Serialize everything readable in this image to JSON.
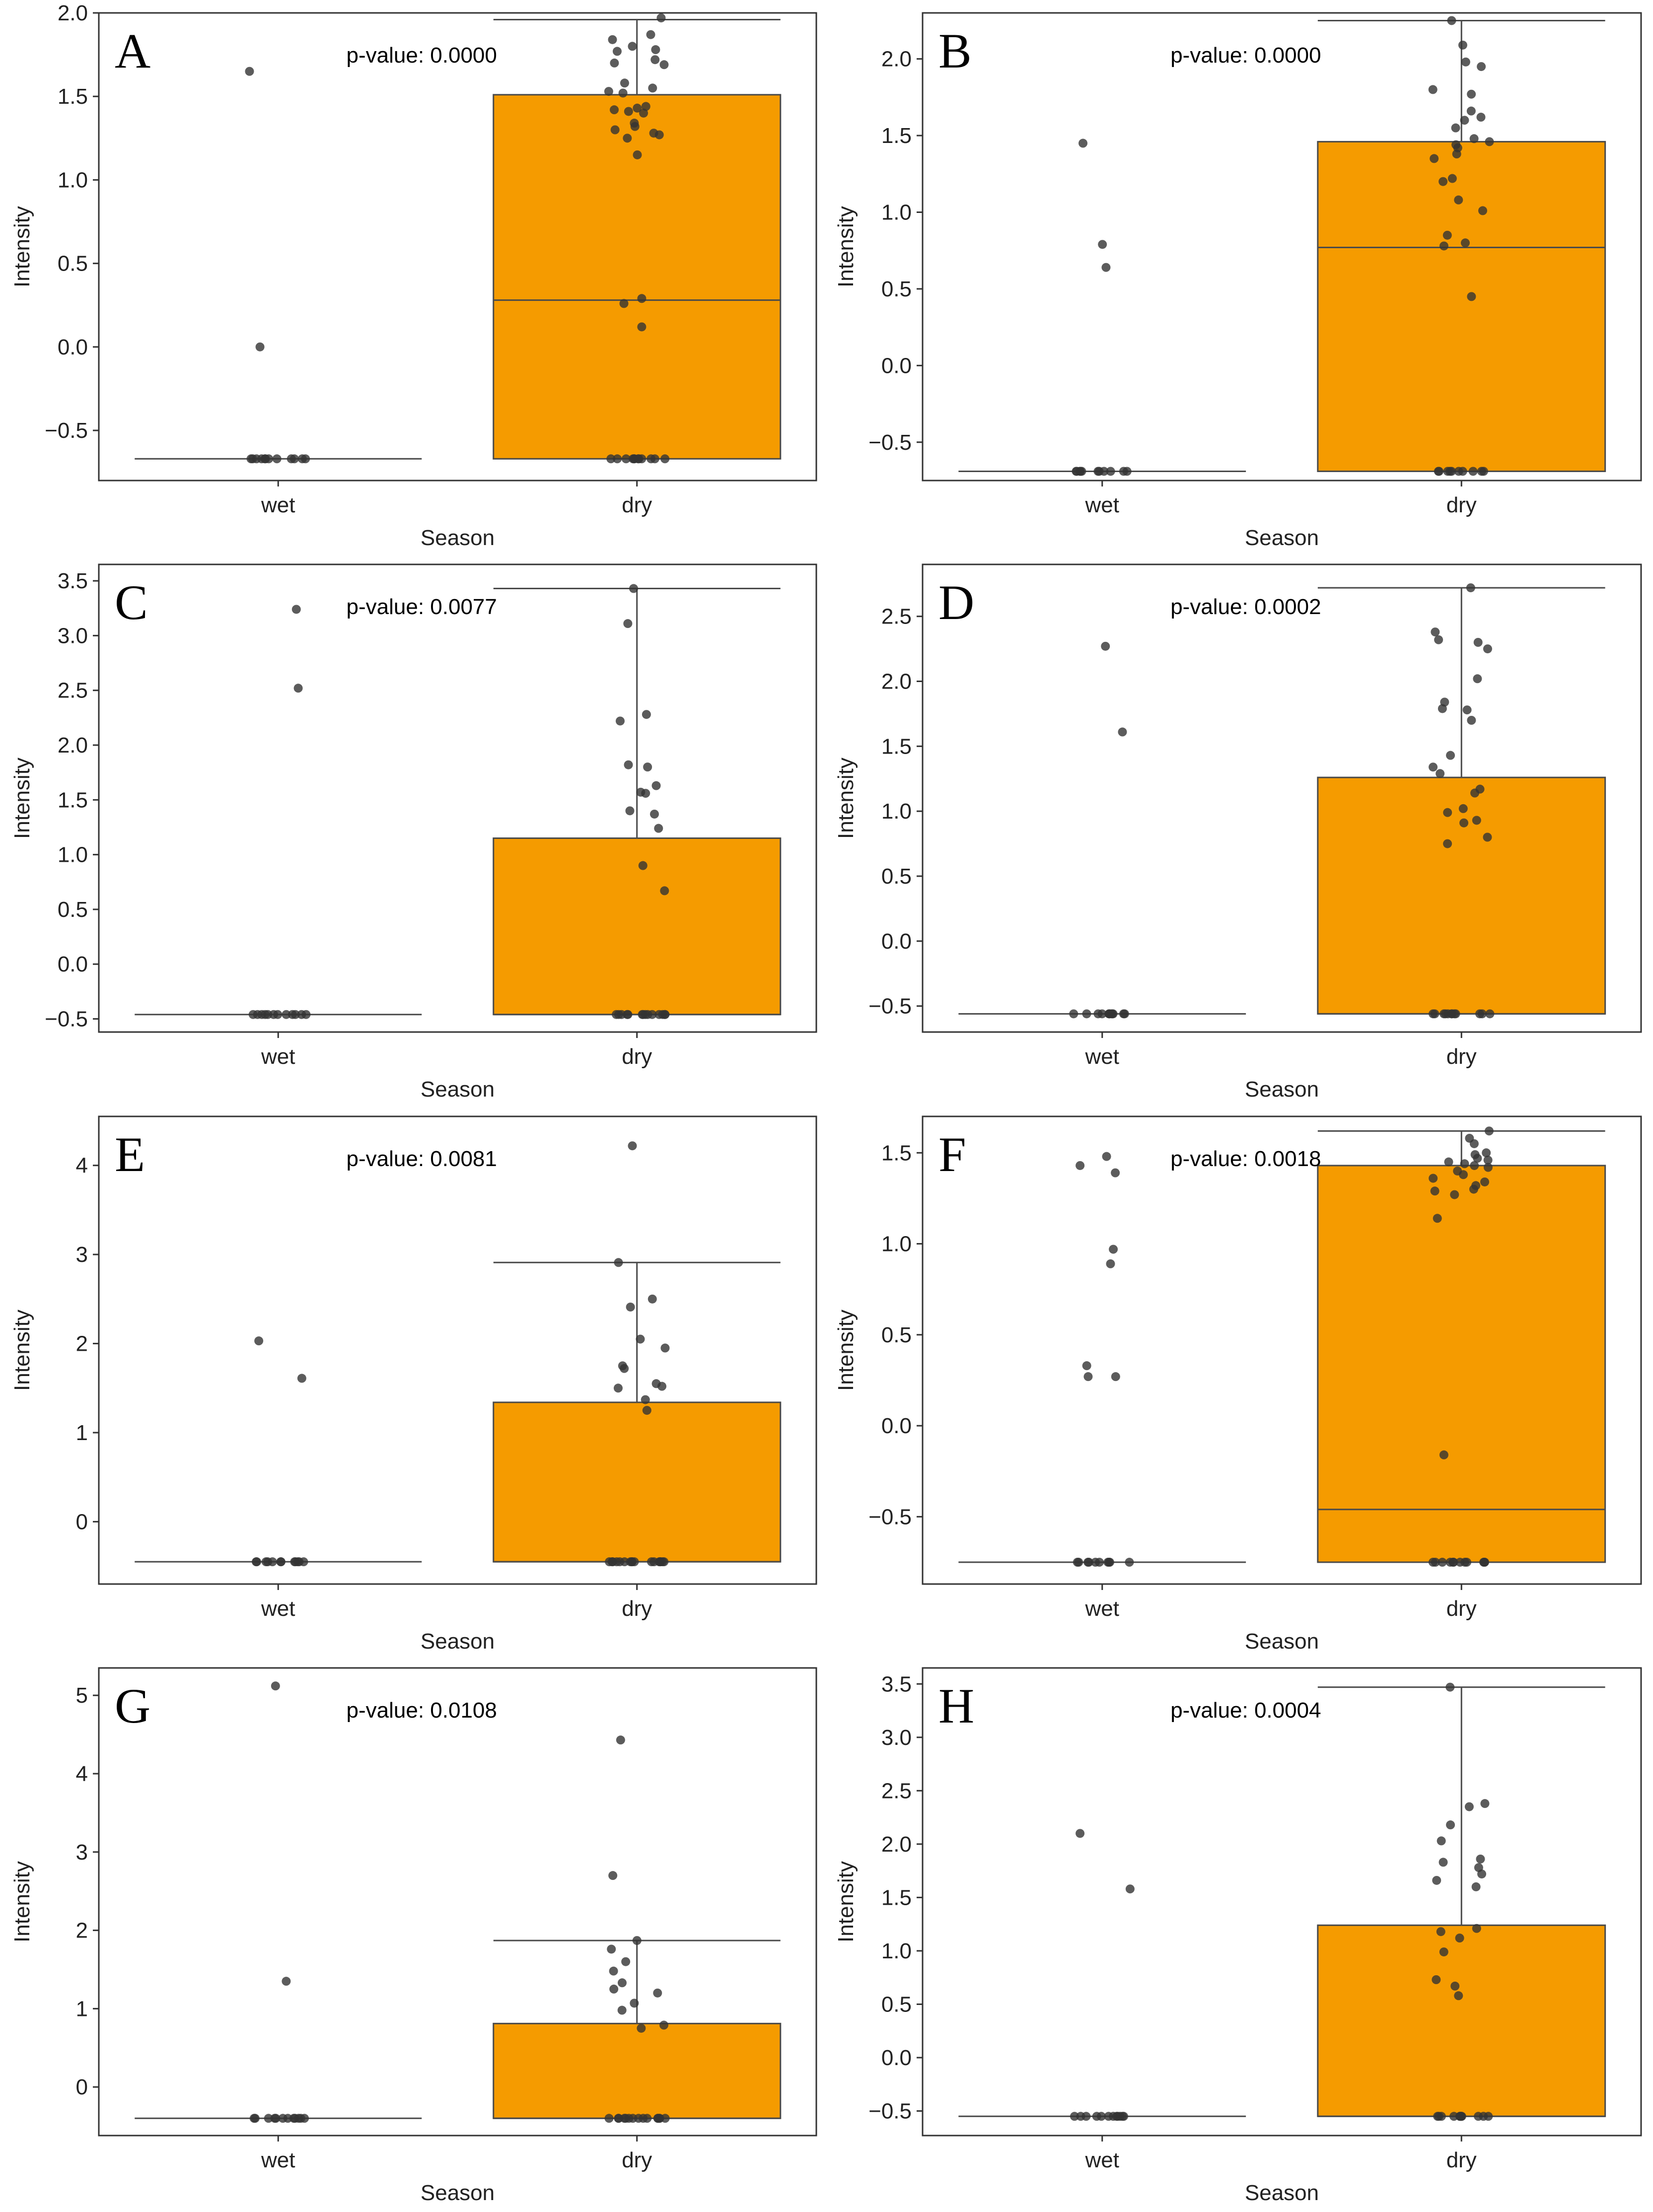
{
  "chart_data": [
    {
      "type": "box",
      "panel_label": "A",
      "annotation": "p-value: 0.0000",
      "xlabel": "Season",
      "ylabel": "Intensity",
      "categories": [
        "wet",
        "dry"
      ],
      "ylim": [
        -0.8,
        2.0
      ],
      "yticks": [
        -0.5,
        0.0,
        0.5,
        1.0,
        1.5,
        2.0
      ],
      "ytick_labels": [
        "−0.5",
        "0.0",
        "0.5",
        "1.0",
        "1.5",
        "2.0"
      ],
      "box_color": "#f59b00",
      "boxes": [
        {
          "category": "wet",
          "q1": -0.67,
          "median": -0.67,
          "q3": -0.67,
          "whisker_low": -0.67,
          "whisker_high": -0.67
        },
        {
          "category": "dry",
          "q1": -0.67,
          "median": 0.28,
          "q3": 1.51,
          "whisker_low": -0.67,
          "whisker_high": 1.96
        }
      ],
      "points": {
        "wet": [
          1.65,
          0.0,
          -0.67,
          -0.67,
          -0.67,
          -0.67,
          -0.67,
          -0.67,
          -0.67,
          -0.67,
          -0.67,
          -0.67,
          -0.67,
          -0.67
        ],
        "dry": [
          1.97,
          1.87,
          1.84,
          1.8,
          1.78,
          1.77,
          1.72,
          1.7,
          1.69,
          1.58,
          1.55,
          1.53,
          1.52,
          1.44,
          1.43,
          1.42,
          1.41,
          1.4,
          1.34,
          1.32,
          1.3,
          1.28,
          1.27,
          1.25,
          1.15,
          0.29,
          0.26,
          0.12,
          -0.67,
          -0.67,
          -0.67,
          -0.67,
          -0.67,
          -0.67,
          -0.67,
          -0.67,
          -0.67,
          -0.67,
          -0.67,
          -0.67
        ]
      }
    },
    {
      "type": "box",
      "panel_label": "B",
      "annotation": "p-value: 0.0000",
      "xlabel": "Season",
      "ylabel": "Intensity",
      "categories": [
        "wet",
        "dry"
      ],
      "ylim": [
        -0.75,
        2.3
      ],
      "yticks": [
        -0.5,
        0.0,
        0.5,
        1.0,
        1.5,
        2.0
      ],
      "ytick_labels": [
        "−0.5",
        "0.0",
        "0.5",
        "1.0",
        "1.5",
        "2.0"
      ],
      "box_color": "#f59b00",
      "boxes": [
        {
          "category": "wet",
          "q1": -0.69,
          "median": -0.69,
          "q3": -0.69,
          "whisker_low": -0.69,
          "whisker_high": -0.69
        },
        {
          "category": "dry",
          "q1": -0.69,
          "median": 0.77,
          "q3": 1.46,
          "whisker_low": -0.69,
          "whisker_high": 2.25
        }
      ],
      "points": {
        "wet": [
          1.45,
          0.79,
          0.64,
          -0.69,
          -0.69,
          -0.69,
          -0.69,
          -0.69,
          -0.69,
          -0.69,
          -0.69,
          -0.69,
          -0.69,
          -0.69
        ],
        "dry": [
          2.25,
          2.09,
          1.98,
          1.95,
          1.8,
          1.77,
          1.66,
          1.62,
          1.6,
          1.55,
          1.48,
          1.46,
          1.44,
          1.42,
          1.38,
          1.35,
          1.22,
          1.2,
          1.08,
          1.01,
          0.85,
          0.8,
          0.78,
          0.45,
          -0.69,
          -0.69,
          -0.69,
          -0.69,
          -0.69,
          -0.69,
          -0.69,
          -0.69,
          -0.69,
          -0.69
        ]
      }
    },
    {
      "type": "box",
      "panel_label": "C",
      "annotation": "p-value: 0.0077",
      "xlabel": "Season",
      "ylabel": "Intensity",
      "categories": [
        "wet",
        "dry"
      ],
      "ylim": [
        -0.62,
        3.65
      ],
      "yticks": [
        -0.5,
        0.0,
        0.5,
        1.0,
        1.5,
        2.0,
        2.5,
        3.0,
        3.5
      ],
      "ytick_labels": [
        "−0.5",
        "0.0",
        "0.5",
        "1.0",
        "1.5",
        "2.0",
        "2.5",
        "3.0",
        "3.5"
      ],
      "box_color": "#f59b00",
      "boxes": [
        {
          "category": "wet",
          "q1": -0.46,
          "median": -0.46,
          "q3": -0.46,
          "whisker_low": -0.46,
          "whisker_high": -0.46
        },
        {
          "category": "dry",
          "q1": -0.46,
          "median": -0.46,
          "q3": 1.15,
          "whisker_low": -0.46,
          "whisker_high": 3.43
        }
      ],
      "points": {
        "wet": [
          3.24,
          2.52,
          -0.46,
          -0.46,
          -0.46,
          -0.46,
          -0.46,
          -0.46,
          -0.46,
          -0.46,
          -0.46,
          -0.46,
          -0.46,
          -0.46
        ],
        "dry": [
          3.43,
          3.11,
          2.28,
          2.22,
          1.82,
          1.8,
          1.63,
          1.57,
          1.56,
          1.4,
          1.37,
          1.24,
          0.9,
          0.67,
          -0.46,
          -0.46,
          -0.46,
          -0.46,
          -0.46,
          -0.46,
          -0.46,
          -0.46,
          -0.46,
          -0.46,
          -0.46,
          -0.46,
          -0.46,
          -0.46
        ]
      }
    },
    {
      "type": "box",
      "panel_label": "D",
      "annotation": "p-value: 0.0002",
      "xlabel": "Season",
      "ylabel": "Intensity",
      "categories": [
        "wet",
        "dry"
      ],
      "ylim": [
        -0.7,
        2.9
      ],
      "yticks": [
        -0.5,
        0.0,
        0.5,
        1.0,
        1.5,
        2.0,
        2.5
      ],
      "ytick_labels": [
        "−0.5",
        "0.0",
        "0.5",
        "1.0",
        "1.5",
        "2.0",
        "2.5"
      ],
      "box_color": "#f59b00",
      "boxes": [
        {
          "category": "wet",
          "q1": -0.56,
          "median": -0.56,
          "q3": -0.56,
          "whisker_low": -0.56,
          "whisker_high": -0.56
        },
        {
          "category": "dry",
          "q1": -0.56,
          "median": -0.56,
          "q3": 1.26,
          "whisker_low": -0.56,
          "whisker_high": 2.72
        }
      ],
      "points": {
        "wet": [
          2.27,
          1.61,
          -0.56,
          -0.56,
          -0.56,
          -0.56,
          -0.56,
          -0.56,
          -0.56,
          -0.56,
          -0.56,
          -0.56,
          -0.56,
          -0.56
        ],
        "dry": [
          2.72,
          2.38,
          2.32,
          2.3,
          2.25,
          2.02,
          1.84,
          1.79,
          1.78,
          1.7,
          1.43,
          1.34,
          1.29,
          1.17,
          1.14,
          1.02,
          0.99,
          0.93,
          0.91,
          0.8,
          0.75,
          -0.56,
          -0.56,
          -0.56,
          -0.56,
          -0.56,
          -0.56,
          -0.56,
          -0.56,
          -0.56,
          -0.56,
          -0.56,
          -0.56
        ]
      }
    },
    {
      "type": "box",
      "panel_label": "E",
      "annotation": "p-value: 0.0081",
      "xlabel": "Season",
      "ylabel": "Intensity",
      "categories": [
        "wet",
        "dry"
      ],
      "ylim": [
        -0.7,
        4.55
      ],
      "yticks": [
        0,
        1,
        2,
        3,
        4
      ],
      "ytick_labels": [
        "0",
        "1",
        "2",
        "3",
        "4"
      ],
      "box_color": "#f59b00",
      "boxes": [
        {
          "category": "wet",
          "q1": -0.45,
          "median": -0.45,
          "q3": -0.45,
          "whisker_low": -0.45,
          "whisker_high": -0.45
        },
        {
          "category": "dry",
          "q1": -0.45,
          "median": -0.45,
          "q3": 1.34,
          "whisker_low": -0.45,
          "whisker_high": 2.91
        }
      ],
      "points": {
        "wet": [
          2.03,
          1.61,
          -0.45,
          -0.45,
          -0.45,
          -0.45,
          -0.45,
          -0.45,
          -0.45,
          -0.45,
          -0.45,
          -0.45,
          -0.45,
          -0.45
        ],
        "dry": [
          4.22,
          2.91,
          2.5,
          2.41,
          2.05,
          1.95,
          1.75,
          1.72,
          1.55,
          1.52,
          1.5,
          1.37,
          1.25,
          -0.45,
          -0.45,
          -0.45,
          -0.45,
          -0.45,
          -0.45,
          -0.45,
          -0.45,
          -0.45,
          -0.45,
          -0.45,
          -0.45,
          -0.45,
          -0.45,
          -0.45,
          -0.45,
          -0.45
        ]
      }
    },
    {
      "type": "box",
      "panel_label": "F",
      "annotation": "p-value: 0.0018",
      "xlabel": "Season",
      "ylabel": "Intensity",
      "categories": [
        "wet",
        "dry"
      ],
      "ylim": [
        -0.87,
        1.7
      ],
      "yticks": [
        -0.5,
        0.0,
        0.5,
        1.0,
        1.5
      ],
      "ytick_labels": [
        "−0.5",
        "0.0",
        "0.5",
        "1.0",
        "1.5"
      ],
      "box_color": "#f59b00",
      "boxes": [
        {
          "category": "wet",
          "q1": -0.75,
          "median": -0.75,
          "q3": -0.75,
          "whisker_low": -0.75,
          "whisker_high": -0.75
        },
        {
          "category": "dry",
          "q1": -0.75,
          "median": -0.46,
          "q3": 1.43,
          "whisker_low": -0.75,
          "whisker_high": 1.62
        }
      ],
      "points": {
        "wet": [
          1.48,
          1.43,
          1.39,
          0.97,
          0.89,
          0.33,
          0.27,
          0.27,
          -0.75,
          -0.75,
          -0.75,
          -0.75,
          -0.75,
          -0.75,
          -0.75,
          -0.75,
          -0.75,
          -0.75
        ],
        "dry": [
          1.62,
          1.58,
          1.55,
          1.5,
          1.49,
          1.47,
          1.46,
          1.45,
          1.44,
          1.43,
          1.42,
          1.4,
          1.38,
          1.36,
          1.34,
          1.32,
          1.3,
          1.29,
          1.27,
          1.14,
          -0.16,
          -0.75,
          -0.75,
          -0.75,
          -0.75,
          -0.75,
          -0.75,
          -0.75,
          -0.75,
          -0.75,
          -0.75,
          -0.75,
          -0.75
        ]
      }
    },
    {
      "type": "box",
      "panel_label": "G",
      "annotation": "p-value: 0.0108",
      "xlabel": "Season",
      "ylabel": "Intensity",
      "categories": [
        "wet",
        "dry"
      ],
      "ylim": [
        -0.62,
        5.35
      ],
      "yticks": [
        0,
        1,
        2,
        3,
        4,
        5
      ],
      "ytick_labels": [
        "0",
        "1",
        "2",
        "3",
        "4",
        "5"
      ],
      "box_color": "#f59b00",
      "boxes": [
        {
          "category": "wet",
          "q1": -0.4,
          "median": -0.4,
          "q3": -0.4,
          "whisker_low": -0.4,
          "whisker_high": -0.4
        },
        {
          "category": "dry",
          "q1": -0.4,
          "median": -0.4,
          "q3": 0.81,
          "whisker_low": -0.4,
          "whisker_high": 1.87
        }
      ],
      "points": {
        "wet": [
          5.12,
          1.35,
          -0.4,
          -0.4,
          -0.4,
          -0.4,
          -0.4,
          -0.4,
          -0.4,
          -0.4,
          -0.4,
          -0.4,
          -0.4,
          -0.4
        ],
        "dry": [
          4.43,
          2.7,
          1.87,
          1.76,
          1.6,
          1.48,
          1.33,
          1.25,
          1.2,
          1.07,
          0.98,
          0.79,
          0.75,
          -0.4,
          -0.4,
          -0.4,
          -0.4,
          -0.4,
          -0.4,
          -0.4,
          -0.4,
          -0.4,
          -0.4,
          -0.4,
          -0.4,
          -0.4,
          -0.4,
          -0.4
        ]
      }
    },
    {
      "type": "box",
      "panel_label": "H",
      "annotation": "p-value: 0.0004",
      "xlabel": "Season",
      "ylabel": "Intensity",
      "categories": [
        "wet",
        "dry"
      ],
      "ylim": [
        -0.73,
        3.65
      ],
      "yticks": [
        -0.5,
        0.0,
        0.5,
        1.0,
        1.5,
        2.0,
        2.5,
        3.0,
        3.5
      ],
      "ytick_labels": [
        "−0.5",
        "0.0",
        "0.5",
        "1.0",
        "1.5",
        "2.0",
        "2.5",
        "3.0",
        "3.5"
      ],
      "box_color": "#f59b00",
      "boxes": [
        {
          "category": "wet",
          "q1": -0.55,
          "median": -0.55,
          "q3": -0.55,
          "whisker_low": -0.55,
          "whisker_high": -0.55
        },
        {
          "category": "dry",
          "q1": -0.55,
          "median": -0.55,
          "q3": 1.24,
          "whisker_low": -0.55,
          "whisker_high": 3.47
        }
      ],
      "points": {
        "wet": [
          2.1,
          1.58,
          -0.55,
          -0.55,
          -0.55,
          -0.55,
          -0.55,
          -0.55,
          -0.55,
          -0.55,
          -0.55,
          -0.55,
          -0.55,
          -0.55
        ],
        "dry": [
          3.47,
          2.38,
          2.35,
          2.18,
          2.03,
          1.86,
          1.83,
          1.78,
          1.72,
          1.66,
          1.6,
          1.21,
          1.18,
          1.12,
          0.99,
          0.73,
          0.67,
          0.58,
          -0.55,
          -0.55,
          -0.55,
          -0.55,
          -0.55,
          -0.55,
          -0.55,
          -0.55,
          -0.55,
          -0.55,
          -0.55,
          -0.55
        ]
      }
    }
  ]
}
